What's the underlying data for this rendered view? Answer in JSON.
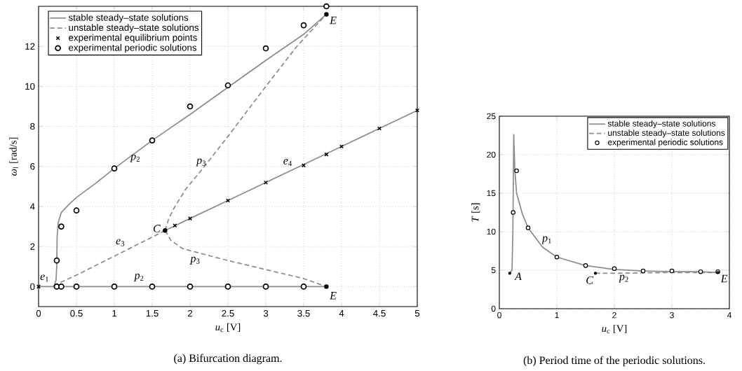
{
  "chart_data": [
    {
      "type": "line",
      "xlabel": "*u*$_{c}$ [V]",
      "ylabel": "*ω*$_{l}$ [rad/s]",
      "xlim": [
        0,
        5
      ],
      "ylim": [
        -1,
        14
      ],
      "xticks": [
        0,
        0.5,
        1,
        1.5,
        2,
        2.5,
        3,
        3.5,
        4,
        4.5,
        5
      ],
      "yticks": [
        0,
        2,
        4,
        6,
        8,
        10,
        12
      ],
      "grid": true,
      "legend": "top left",
      "series": [
        {
          "name": "stable steady–state solutions",
          "type": "line",
          "line_style": "solid",
          "marker": "none",
          "color": "#8c8c8c",
          "x": [
            0.2,
            0.23,
            0.24,
            0.245,
            0.26,
            0.3,
            0.4,
            0.5,
            0.75,
            1,
            1.5,
            2,
            2.5,
            3,
            3.5,
            3.8
          ],
          "values": [
            0,
            0.3,
            1.0,
            2.5,
            3.2,
            3.7,
            4.1,
            4.45,
            5.15,
            5.9,
            7.3,
            8.6,
            9.95,
            11.3,
            12.6,
            13.6
          ]
        },
        {
          "name": "unstable steady–state solutions",
          "type": "line",
          "line_style": "dashed",
          "marker": "none",
          "color": "#8c8c8c",
          "x": [
            1.67,
            1.72,
            1.8,
            1.95,
            2.19,
            2.5,
            3,
            3.41,
            3.8
          ],
          "values": [
            2.8,
            3.4,
            4.0,
            4.9,
            6,
            7.5,
            10.0,
            12,
            13.6
          ]
        },
        {
          "name": "experimental equilibrium points",
          "type": "scatter",
          "marker": "cross",
          "color": "#000000",
          "x": [
            0,
            1.8,
            2,
            2.5,
            3,
            3.5,
            3.8,
            4,
            4.5,
            5
          ],
          "values": [
            0,
            3.05,
            3.4,
            4.3,
            5.2,
            6.05,
            6.6,
            7.0,
            7.9,
            8.8
          ]
        },
        {
          "name": "experimental periodic solutions",
          "type": "scatter",
          "marker": "circle",
          "color": "#000000",
          "x": [
            0.24,
            0.3,
            0.5,
            1,
            1.5,
            2,
            2.5,
            3,
            3.5,
            3.8,
            0.24,
            0.3,
            0.5,
            1,
            1.5,
            2,
            2.5,
            3,
            3.5
          ],
          "values": [
            1.3,
            3.0,
            3.8,
            5.9,
            7.3,
            9.0,
            10.05,
            11.9,
            13.05,
            14.0,
            0,
            0,
            0,
            0,
            0,
            0,
            0,
            0,
            0
          ]
        },
        {
          "type": "line",
          "line_style": "solid",
          "marker": "none",
          "color": "#8c8c8c",
          "x": [
            0,
            3.8
          ],
          "values": [
            0,
            0
          ]
        },
        {
          "type": "line",
          "line_style": "solid",
          "marker": "none",
          "color": "#8c8c8c",
          "x": [
            1.67,
            2,
            2.5,
            3,
            3.5,
            4,
            4.5,
            5
          ],
          "values": [
            2.8,
            3.4,
            4.3,
            5.2,
            6.1,
            7.0,
            7.9,
            8.8
          ]
        },
        {
          "type": "line",
          "line_style": "dashed",
          "marker": "none",
          "color": "#8c8c8c",
          "x": [
            0.2,
            0.5,
            1,
            1.5,
            1.67
          ],
          "values": [
            0.05,
            0.57,
            1.52,
            2.47,
            2.8
          ]
        },
        {
          "type": "line",
          "line_style": "dashed",
          "marker": "none",
          "color": "#8c8c8c",
          "x": [
            1.67,
            1.75,
            1.9,
            2.5,
            3,
            3.5,
            3.8
          ],
          "values": [
            2.8,
            2.3,
            1.9,
            1.3,
            0.85,
            0.4,
            0
          ]
        },
        {
          "type": "scatter",
          "marker": "circle",
          "color": "#000000",
          "x": [
            1.67,
            3.8,
            3.8
          ],
          "values": [
            2.8,
            13.6,
            0
          ]
        }
      ],
      "annotations": [
        "*C*",
        "*E*",
        "*E*",
        "*e*$_{1}$",
        "*e*$_{3}$",
        "*e*$_{4}$",
        "*p*$_{2}$",
        "*p*$_{3}$",
        "*p*$_{2}$",
        "*p*$_{3}$",
        "(a) Bifurcation diagram."
      ]
    },
    {
      "type": "line",
      "xlabel": "*u*$_{c}$ [V]",
      "ylabel": "*T* [s]",
      "xlim": [
        0,
        4
      ],
      "ylim": [
        0,
        25
      ],
      "xticks": [
        0,
        1,
        2,
        3,
        4
      ],
      "yticks": [
        0,
        5,
        10,
        15,
        20,
        25
      ],
      "grid": true,
      "legend": "top right",
      "series": [
        {
          "name": "stable steady–state solutions",
          "type": "line",
          "line_style": "solid",
          "marker": "none",
          "color": "#8c8c8c",
          "x": [
            0.18,
            0.22,
            0.235,
            0.245,
            0.25,
            0.27,
            0.3,
            0.4,
            0.5,
            0.75,
            1,
            1.5,
            2,
            2.5,
            3,
            3.5,
            3.8
          ],
          "values": [
            4.6,
            5,
            10,
            18,
            22.6,
            18,
            15,
            12.3,
            10.5,
            8.0,
            6.7,
            5.6,
            5.1,
            4.9,
            4.8,
            4.8,
            4.7
          ]
        },
        {
          "name": "unstable steady–state solutions",
          "type": "line",
          "line_style": "dashed",
          "marker": "none",
          "color": "#8c8c8c",
          "x": [
            1.67,
            2,
            3,
            3.8
          ],
          "values": [
            4.6,
            4.6,
            4.7,
            4.7
          ]
        },
        {
          "name": "experimental periodic solutions",
          "type": "scatter",
          "marker": "circle",
          "color": "#000000",
          "x": [
            0.24,
            0.3,
            0.5,
            1,
            1.5,
            2,
            2.5,
            3,
            3.5,
            3.8
          ],
          "values": [
            12.5,
            17.9,
            10.5,
            6.7,
            5.6,
            5.2,
            4.9,
            4.9,
            4.8,
            4.8
          ]
        },
        {
          "type": "scatter",
          "marker": "circle",
          "color": "#000000",
          "x": [
            0.18,
            1.67,
            3.8
          ],
          "values": [
            4.6,
            4.6,
            4.7
          ]
        }
      ],
      "annotations": [
        "*A*",
        "*C*",
        "*E*",
        "*p*$_{1}$",
        "*p*$_{2}$",
        "(b) Period time of the periodic solutions."
      ]
    }
  ]
}
